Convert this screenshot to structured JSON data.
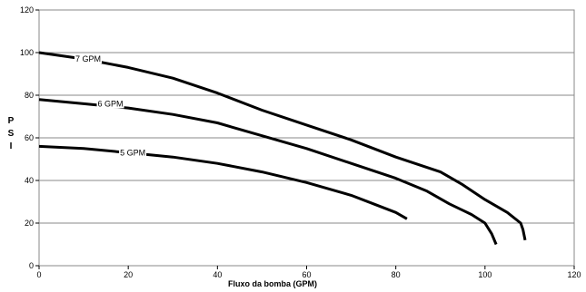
{
  "chart_data": {
    "type": "line",
    "title": "",
    "xlabel": "Fluxo da bomba (GPM)",
    "ylabel": "PSI",
    "ylabel_letters": [
      "P",
      "S",
      "I"
    ],
    "xlim": [
      0,
      120
    ],
    "ylim": [
      0,
      120
    ],
    "xticks": [
      0,
      20,
      40,
      60,
      80,
      100,
      120
    ],
    "yticks": [
      0,
      20,
      40,
      60,
      80,
      100,
      120
    ],
    "grid": "horizontal",
    "legend": "none",
    "colors": {
      "line": "#000000",
      "grid": "#888888",
      "border": "#888888"
    },
    "series": [
      {
        "name": "7 GPM",
        "label_at": [
          11,
          97
        ],
        "points": [
          [
            0,
            100
          ],
          [
            10,
            97
          ],
          [
            20,
            93
          ],
          [
            30,
            88
          ],
          [
            40,
            81
          ],
          [
            50,
            73
          ],
          [
            60,
            66
          ],
          [
            70,
            59
          ],
          [
            80,
            51
          ],
          [
            90,
            44
          ],
          [
            95,
            38
          ],
          [
            100,
            31
          ],
          [
            105,
            25
          ],
          [
            108,
            20
          ],
          [
            108.5,
            17
          ],
          [
            109,
            12
          ]
        ]
      },
      {
        "name": "6 GPM",
        "label_at": [
          16,
          76
        ],
        "points": [
          [
            0,
            78
          ],
          [
            10,
            76
          ],
          [
            20,
            74
          ],
          [
            30,
            71
          ],
          [
            40,
            67
          ],
          [
            50,
            61
          ],
          [
            60,
            55
          ],
          [
            70,
            48
          ],
          [
            80,
            41
          ],
          [
            87,
            35
          ],
          [
            92,
            29
          ],
          [
            97,
            24
          ],
          [
            100,
            20
          ],
          [
            101.5,
            15
          ],
          [
            102.5,
            10
          ]
        ]
      },
      {
        "name": "5 GPM",
        "label_at": [
          21,
          53
        ],
        "points": [
          [
            0,
            56
          ],
          [
            10,
            55
          ],
          [
            20,
            53
          ],
          [
            30,
            51
          ],
          [
            40,
            48
          ],
          [
            50,
            44
          ],
          [
            60,
            39
          ],
          [
            70,
            33
          ],
          [
            75,
            29
          ],
          [
            80,
            25
          ],
          [
            82.5,
            22
          ]
        ]
      }
    ]
  }
}
